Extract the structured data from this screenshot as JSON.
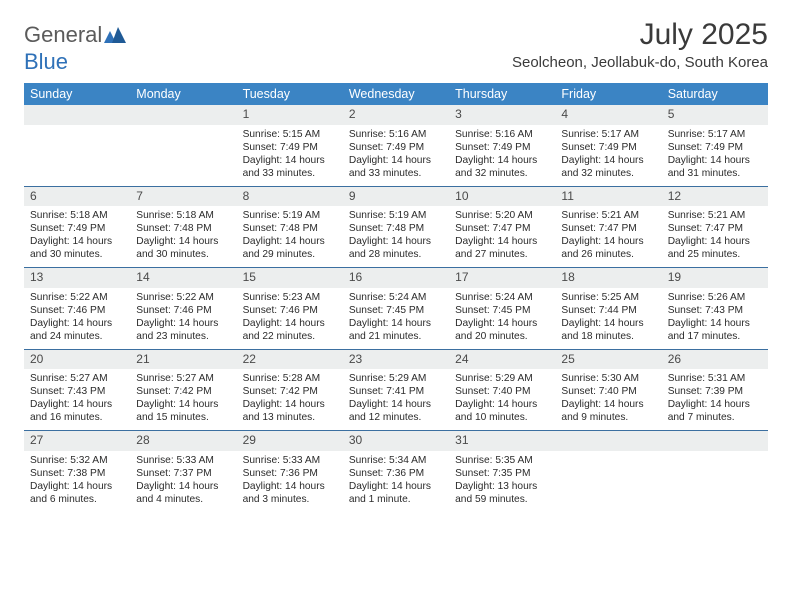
{
  "brand": {
    "part1": "General",
    "part2": "Blue"
  },
  "title": "July 2025",
  "location": "Seolcheon, Jeollabuk-do, South Korea",
  "colors": {
    "header_bg": "#3b84c4",
    "header_fg": "#ffffff",
    "daynum_bg": "#eceeee",
    "week_border": "#3b6fa0",
    "brand_gray": "#5b5b5b",
    "brand_blue": "#2f71b8"
  },
  "typography": {
    "title_fontsize": 30,
    "location_fontsize": 15,
    "dayheader_fontsize": 12.5,
    "cell_fontsize": 10.2,
    "logo_fontsize": 22
  },
  "day_names": [
    "Sunday",
    "Monday",
    "Tuesday",
    "Wednesday",
    "Thursday",
    "Friday",
    "Saturday"
  ],
  "weeks": [
    [
      {
        "n": "",
        "sr": "",
        "ss": "",
        "dl": ""
      },
      {
        "n": "",
        "sr": "",
        "ss": "",
        "dl": ""
      },
      {
        "n": "1",
        "sr": "5:15 AM",
        "ss": "7:49 PM",
        "dl": "14 hours and 33 minutes."
      },
      {
        "n": "2",
        "sr": "5:16 AM",
        "ss": "7:49 PM",
        "dl": "14 hours and 33 minutes."
      },
      {
        "n": "3",
        "sr": "5:16 AM",
        "ss": "7:49 PM",
        "dl": "14 hours and 32 minutes."
      },
      {
        "n": "4",
        "sr": "5:17 AM",
        "ss": "7:49 PM",
        "dl": "14 hours and 32 minutes."
      },
      {
        "n": "5",
        "sr": "5:17 AM",
        "ss": "7:49 PM",
        "dl": "14 hours and 31 minutes."
      }
    ],
    [
      {
        "n": "6",
        "sr": "5:18 AM",
        "ss": "7:49 PM",
        "dl": "14 hours and 30 minutes."
      },
      {
        "n": "7",
        "sr": "5:18 AM",
        "ss": "7:48 PM",
        "dl": "14 hours and 30 minutes."
      },
      {
        "n": "8",
        "sr": "5:19 AM",
        "ss": "7:48 PM",
        "dl": "14 hours and 29 minutes."
      },
      {
        "n": "9",
        "sr": "5:19 AM",
        "ss": "7:48 PM",
        "dl": "14 hours and 28 minutes."
      },
      {
        "n": "10",
        "sr": "5:20 AM",
        "ss": "7:47 PM",
        "dl": "14 hours and 27 minutes."
      },
      {
        "n": "11",
        "sr": "5:21 AM",
        "ss": "7:47 PM",
        "dl": "14 hours and 26 minutes."
      },
      {
        "n": "12",
        "sr": "5:21 AM",
        "ss": "7:47 PM",
        "dl": "14 hours and 25 minutes."
      }
    ],
    [
      {
        "n": "13",
        "sr": "5:22 AM",
        "ss": "7:46 PM",
        "dl": "14 hours and 24 minutes."
      },
      {
        "n": "14",
        "sr": "5:22 AM",
        "ss": "7:46 PM",
        "dl": "14 hours and 23 minutes."
      },
      {
        "n": "15",
        "sr": "5:23 AM",
        "ss": "7:46 PM",
        "dl": "14 hours and 22 minutes."
      },
      {
        "n": "16",
        "sr": "5:24 AM",
        "ss": "7:45 PM",
        "dl": "14 hours and 21 minutes."
      },
      {
        "n": "17",
        "sr": "5:24 AM",
        "ss": "7:45 PM",
        "dl": "14 hours and 20 minutes."
      },
      {
        "n": "18",
        "sr": "5:25 AM",
        "ss": "7:44 PM",
        "dl": "14 hours and 18 minutes."
      },
      {
        "n": "19",
        "sr": "5:26 AM",
        "ss": "7:43 PM",
        "dl": "14 hours and 17 minutes."
      }
    ],
    [
      {
        "n": "20",
        "sr": "5:27 AM",
        "ss": "7:43 PM",
        "dl": "14 hours and 16 minutes."
      },
      {
        "n": "21",
        "sr": "5:27 AM",
        "ss": "7:42 PM",
        "dl": "14 hours and 15 minutes."
      },
      {
        "n": "22",
        "sr": "5:28 AM",
        "ss": "7:42 PM",
        "dl": "14 hours and 13 minutes."
      },
      {
        "n": "23",
        "sr": "5:29 AM",
        "ss": "7:41 PM",
        "dl": "14 hours and 12 minutes."
      },
      {
        "n": "24",
        "sr": "5:29 AM",
        "ss": "7:40 PM",
        "dl": "14 hours and 10 minutes."
      },
      {
        "n": "25",
        "sr": "5:30 AM",
        "ss": "7:40 PM",
        "dl": "14 hours and 9 minutes."
      },
      {
        "n": "26",
        "sr": "5:31 AM",
        "ss": "7:39 PM",
        "dl": "14 hours and 7 minutes."
      }
    ],
    [
      {
        "n": "27",
        "sr": "5:32 AM",
        "ss": "7:38 PM",
        "dl": "14 hours and 6 minutes."
      },
      {
        "n": "28",
        "sr": "5:33 AM",
        "ss": "7:37 PM",
        "dl": "14 hours and 4 minutes."
      },
      {
        "n": "29",
        "sr": "5:33 AM",
        "ss": "7:36 PM",
        "dl": "14 hours and 3 minutes."
      },
      {
        "n": "30",
        "sr": "5:34 AM",
        "ss": "7:36 PM",
        "dl": "14 hours and 1 minute."
      },
      {
        "n": "31",
        "sr": "5:35 AM",
        "ss": "7:35 PM",
        "dl": "13 hours and 59 minutes."
      },
      {
        "n": "",
        "sr": "",
        "ss": "",
        "dl": ""
      },
      {
        "n": "",
        "sr": "",
        "ss": "",
        "dl": ""
      }
    ]
  ],
  "labels": {
    "sunrise": "Sunrise:",
    "sunset": "Sunset:",
    "daylight": "Daylight:"
  }
}
